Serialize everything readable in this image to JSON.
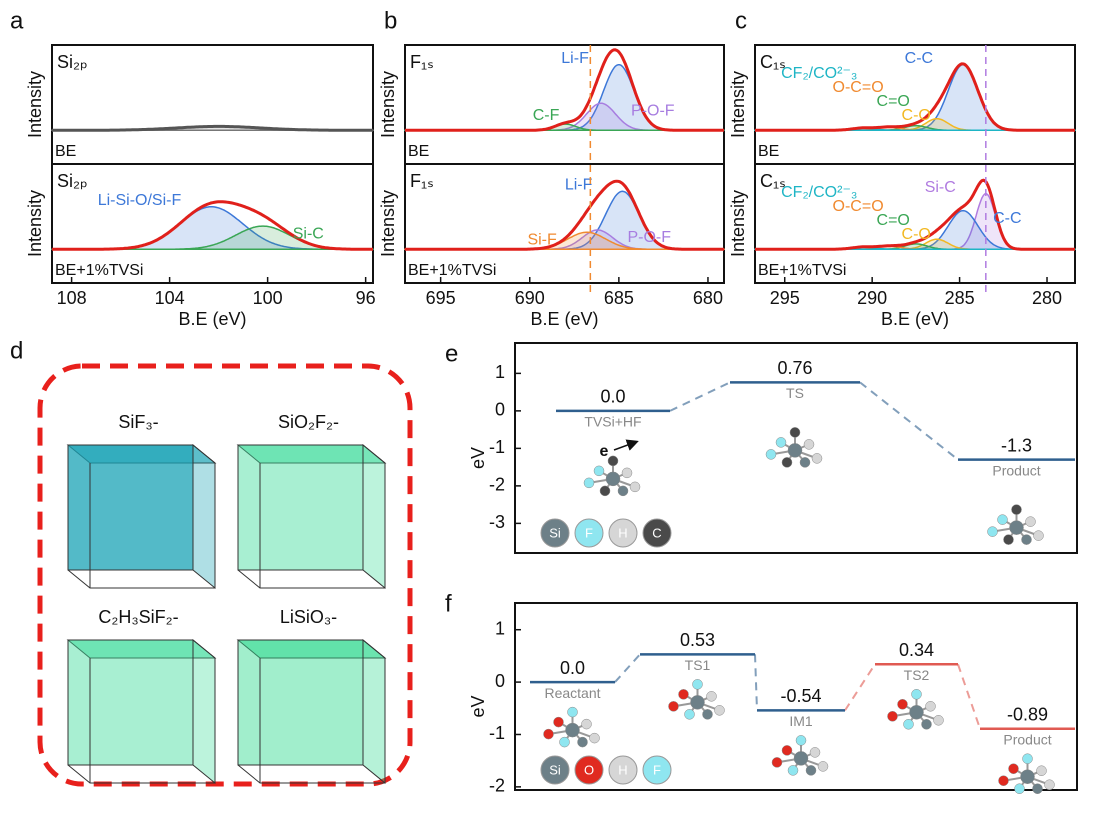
{
  "chart_data": [
    {
      "type": "xps",
      "panel": "a",
      "xlabel": "B.E (eV)",
      "ylabel": "Intensity",
      "xlim": [
        108.8,
        95.7
      ],
      "xticks": [
        108,
        104,
        100,
        96
      ],
      "ylim": [
        -0.1,
        1
      ],
      "envelope_color": "#e0201b",
      "subplots": [
        {
          "label": "Si₂ₚ",
          "sample": "BE",
          "envelope_color": "#555555",
          "peaks": [
            {
              "center": 102,
              "fwhm": 4,
              "height": 0.05,
              "color": "#777777"
            }
          ]
        },
        {
          "label": "Si₂ₚ",
          "sample": "BE+1%TVSi",
          "peaks": [
            {
              "name": "Li-Si-O/Si-F",
              "center": 102.3,
              "fwhm": 3,
              "height": 0.55,
              "color": "#3d78d8"
            },
            {
              "name": "Si-C",
              "center": 100.2,
              "fwhm": 2.6,
              "height": 0.3,
              "color": "#3aa655"
            }
          ]
        }
      ]
    },
    {
      "type": "xps",
      "panel": "b",
      "xlabel": "B.E (eV)",
      "ylabel": "Intensity",
      "xlim": [
        697,
        679.1
      ],
      "xticks": [
        695,
        690,
        685,
        680
      ],
      "ylim": [
        -0.1,
        1
      ],
      "envelope_color": "#e0201b",
      "ref_line": 686.6,
      "ref_color": "#f08a30",
      "subplots": [
        {
          "label": "F₁ₛ",
          "sample": "BE",
          "peaks": [
            {
              "name": "Li-F",
              "center": 685,
              "fwhm": 2,
              "height": 0.85,
              "color": "#3d78d8"
            },
            {
              "name": "P-O-F",
              "center": 686,
              "fwhm": 1.9,
              "height": 0.35,
              "color": "#a77de0"
            },
            {
              "name": "C-F",
              "center": 688,
              "fwhm": 1.4,
              "height": 0.08,
              "color": "#3aa655"
            }
          ]
        },
        {
          "label": "F₁ₛ",
          "sample": "BE+1%TVSi",
          "peaks": [
            {
              "name": "Li-F",
              "center": 684.8,
              "fwhm": 2.2,
              "height": 0.75,
              "color": "#3d78d8"
            },
            {
              "name": "P-O-F",
              "center": 686.2,
              "fwhm": 2,
              "height": 0.25,
              "color": "#a77de0"
            },
            {
              "name": "Si-F",
              "center": 686.8,
              "fwhm": 2.5,
              "height": 0.22,
              "color": "#f08a30"
            }
          ]
        }
      ]
    },
    {
      "type": "xps",
      "panel": "c",
      "xlabel": "B.E (eV)",
      "ylabel": "Intensity",
      "xlim": [
        296.7,
        278.4
      ],
      "xticks": [
        295,
        290,
        285,
        280
      ],
      "ylim": [
        -0.1,
        1
      ],
      "envelope_color": "#e0201b",
      "ref_line": 283.5,
      "ref_color": "#b07be0",
      "subplots": [
        {
          "label": "C₁ₛ",
          "sample": "BE",
          "peaks": [
            {
              "name": "C-C",
              "center": 284.8,
              "fwhm": 2,
              "height": 0.85,
              "color": "#3d78d8"
            },
            {
              "name": "C-O",
              "center": 286.3,
              "fwhm": 1.5,
              "height": 0.15,
              "color": "#f2b822"
            },
            {
              "name": "C=O",
              "center": 287.5,
              "fwhm": 1.5,
              "height": 0.06,
              "color": "#3aa655"
            },
            {
              "name": "O-C=O",
              "center": 289,
              "fwhm": 1.5,
              "height": 0.04,
              "color": "#f08a30"
            },
            {
              "name": "CF₂/CO²⁻₃",
              "center": 290.5,
              "fwhm": 1.5,
              "height": 0.03,
              "color": "#1eb5c5"
            }
          ]
        },
        {
          "label": "C₁ₛ",
          "sample": "BE+1%TVSi",
          "peaks": [
            {
              "name": "Si-C",
              "center": 283.5,
              "fwhm": 1.3,
              "height": 0.72,
              "color": "#b07be0"
            },
            {
              "name": "C-C",
              "center": 284.8,
              "fwhm": 2,
              "height": 0.5,
              "color": "#3d78d8"
            },
            {
              "name": "C-O",
              "center": 286.3,
              "fwhm": 1.5,
              "height": 0.13,
              "color": "#f2b822"
            },
            {
              "name": "C=O",
              "center": 287.5,
              "fwhm": 1.5,
              "height": 0.07,
              "color": "#3aa655"
            },
            {
              "name": "O-C=O",
              "center": 289,
              "fwhm": 1.5,
              "height": 0.04,
              "color": "#f08a30"
            },
            {
              "name": "CF₂/CO²⁻₃",
              "center": 290.5,
              "fwhm": 1.5,
              "height": 0.03,
              "color": "#1eb5c5"
            }
          ]
        }
      ]
    },
    {
      "type": "image",
      "panel": "d",
      "labels": [
        "SiF₃-",
        "SiO₂F₂-",
        "C₂H₃SiF₂-",
        "LiSiO₃-"
      ],
      "colors": [
        "#1aa3b5",
        "#3fdc9c",
        "#3fdc9c",
        "#2ed98e"
      ],
      "border_color": "#e8201c"
    },
    {
      "type": "energy",
      "panel": "e",
      "ylabel": "eV",
      "ylim": [
        -3.79,
        1.81
      ],
      "yticks": [
        1,
        0,
        -1,
        -2,
        -3
      ],
      "categories": [
        "TVSi+HF",
        "TS",
        "Product"
      ],
      "values": [
        0,
        0.76,
        -1.3
      ],
      "value_labels": [
        "0.0",
        "0.76",
        "-1.3"
      ],
      "colors": [
        "#2f5f8e",
        "#2f5f8e",
        "#2f5f8e"
      ],
      "annotation": "e",
      "atoms": [
        "Si",
        "F",
        "H",
        "C"
      ],
      "atom_colors": [
        "#6d8088",
        "#8fe6f0",
        "#d6d6d6",
        "#4a4a4a"
      ]
    },
    {
      "type": "energy",
      "panel": "f",
      "ylabel": "eV",
      "ylim": [
        -2.06,
        1.51
      ],
      "yticks": [
        1,
        0,
        -1,
        -2
      ],
      "categories": [
        "Reactant",
        "TS1",
        "IM1",
        "TS2",
        "Product"
      ],
      "values": [
        0,
        0.53,
        -0.54,
        0.34,
        -0.89
      ],
      "value_labels": [
        "0.0",
        "0.53",
        "-0.54",
        "0.34",
        "-0.89"
      ],
      "colors": [
        "#2f5f8e",
        "#2f5f8e",
        "#2f5f8e",
        "#e05a52",
        "#e05a52"
      ],
      "atoms": [
        "Si",
        "O",
        "H",
        "F"
      ],
      "atom_colors": [
        "#6d8088",
        "#e02a20",
        "#d6d6d6",
        "#8fe6f0"
      ]
    }
  ]
}
